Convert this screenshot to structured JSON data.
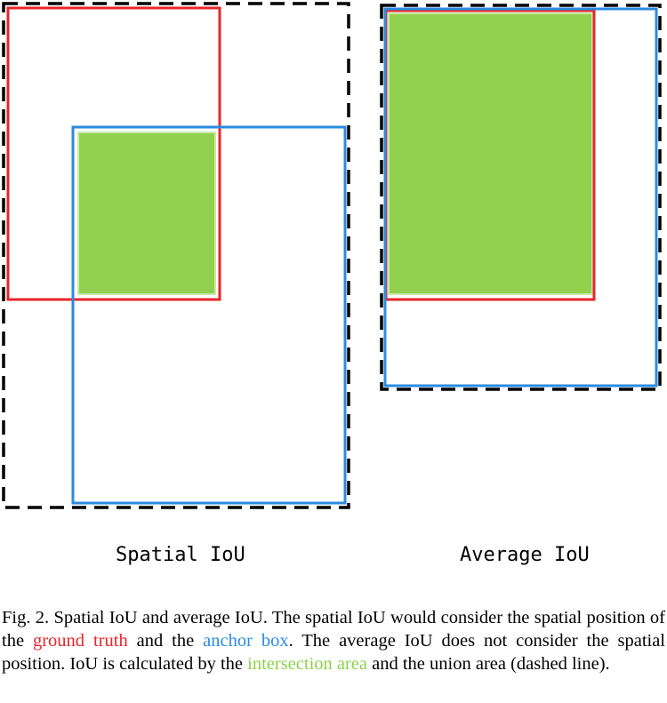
{
  "panels": {
    "left_label": "Spatial IoU",
    "right_label": "Average IoU"
  },
  "caption": {
    "part1": "Fig. 2.  Spatial IoU and average IoU. The spatial IoU would consider the spatial position of the ",
    "ground_truth": "ground truth",
    "part2": " and the ",
    "anchor_box": "anchor box",
    "part3": ". The average IoU does not consider the spatial position. IoU is calculated by the ",
    "intersection_area": "intersection area",
    "part4": " and the union area (dashed line)."
  },
  "colors": {
    "ground_truth": "#e8242a",
    "anchor_box": "#2a8be0",
    "intersection": "#92d050",
    "union": "#000000"
  }
}
